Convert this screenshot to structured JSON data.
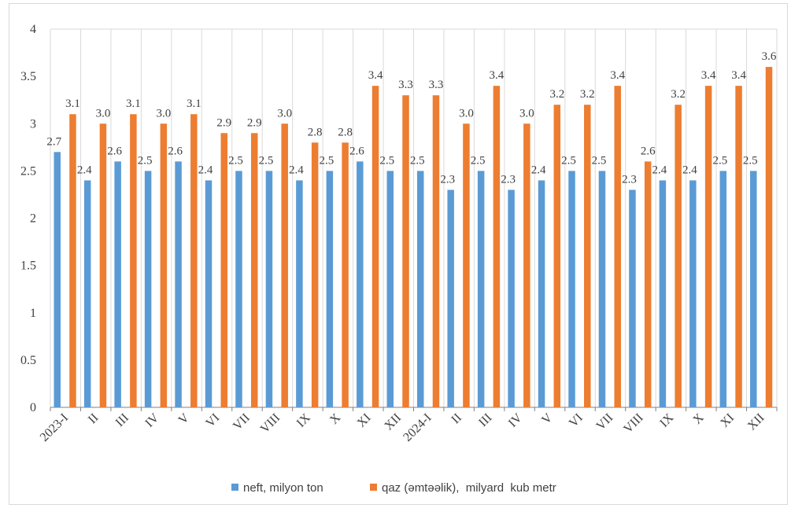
{
  "chart_data": {
    "type": "bar",
    "categories": [
      "2023-I",
      "II",
      "III",
      "IV",
      "V",
      "VI",
      "VII",
      "VIII",
      "IX",
      "X",
      "XI",
      "XII",
      "2024-I",
      "II",
      "III",
      "IV",
      "V",
      "VI",
      "VII",
      "VIII",
      "IX",
      "X",
      "XI",
      "XII"
    ],
    "series": [
      {
        "name": "neft, milyon ton",
        "color": "#5b9bd5",
        "values": [
          2.7,
          2.4,
          2.6,
          2.5,
          2.6,
          2.4,
          2.5,
          2.5,
          2.4,
          2.5,
          2.6,
          2.5,
          2.5,
          2.3,
          2.5,
          2.3,
          2.4,
          2.5,
          2.5,
          2.3,
          2.4,
          2.4,
          2.5,
          2.5
        ],
        "labels": [
          "2.7",
          "2.4",
          "2.6",
          "2.5",
          "2.6",
          "2.4",
          "2.5",
          "2.5",
          "2.4",
          "2.5",
          "2.6",
          "2.5",
          "2.5",
          "2.3",
          "2.5",
          "2.3",
          "2.4",
          "2.5",
          "2.5",
          "2.3",
          "2.4",
          "2.4",
          "2.5",
          "2.5"
        ]
      },
      {
        "name": "qaz (əmtəəlik),  milyard  kub metr",
        "color": "#ed7d31",
        "values": [
          3.1,
          3.0,
          3.1,
          3.0,
          3.1,
          2.9,
          2.9,
          3.0,
          2.8,
          2.8,
          3.4,
          3.3,
          3.3,
          3.0,
          3.4,
          3.0,
          3.2,
          3.2,
          3.4,
          2.6,
          3.2,
          3.4,
          3.4,
          3.6
        ],
        "labels": [
          "3.1",
          "3.0",
          "3.1",
          "3.0",
          "3.1",
          "2.9",
          "2.9",
          "3.0",
          "2.8",
          "2.8",
          "3.4",
          "3.3",
          "3.3",
          "3.0",
          "3.4",
          "3.0",
          "3.2",
          "3.2",
          "3.4",
          "2.6",
          "3.2",
          "3.4",
          "3.4",
          "3.6"
        ]
      }
    ],
    "yticks": [
      "0",
      "0.5",
      "1",
      "1.5",
      "2",
      "2.5",
      "3",
      "3.5",
      "4"
    ],
    "ylim": [
      0,
      4
    ],
    "grid": "vertical",
    "legend": "bottom"
  }
}
